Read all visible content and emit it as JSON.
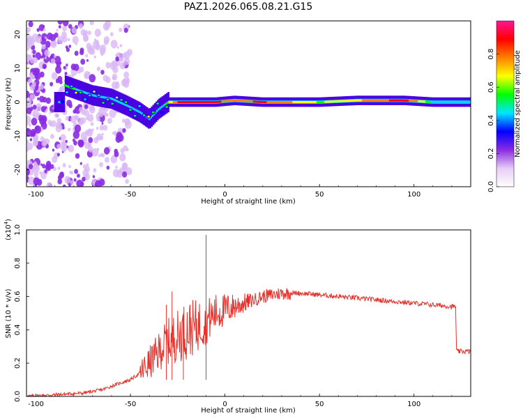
{
  "title": "PAZ1.2026.065.08.21.G15",
  "chart_data": [
    {
      "type": "heatmap",
      "xlabel": "Height of straight line (km)",
      "ylabel": "Frequency (Hz)",
      "xlim": [
        -105,
        130
      ],
      "ylim": [
        -25,
        24
      ],
      "xticks": [
        -100,
        -50,
        0,
        50,
        100
      ],
      "yticks": [
        -20,
        -10,
        0,
        10,
        20
      ],
      "colorbar": {
        "label": "Normalized spectral amplitude",
        "range": [
          0.0,
          1.0
        ],
        "ticks": [
          "0.0",
          "0.2",
          "0.4",
          "0.6",
          "0.8"
        ],
        "colors": [
          "#ffffff",
          "#e6ccf5",
          "#8a2be2",
          "#0000ff",
          "#00e5ff",
          "#00ff00",
          "#ffff00",
          "#ff8000",
          "#ff0000",
          "#ff1493"
        ]
      },
      "ridge": [
        {
          "x": -85,
          "y": 5,
          "amp": 0.6
        },
        {
          "x": -70,
          "y": 2,
          "amp": 0.45
        },
        {
          "x": -60,
          "y": 1,
          "amp": 0.5
        },
        {
          "x": -52,
          "y": -1,
          "amp": 0.45
        },
        {
          "x": -45,
          "y": -3,
          "amp": 0.45
        },
        {
          "x": -40,
          "y": -5,
          "amp": 0.5
        },
        {
          "x": -35,
          "y": -2,
          "amp": 0.5
        },
        {
          "x": -30,
          "y": 0,
          "amp": 0.6
        },
        {
          "x": -25,
          "y": 0,
          "amp": 0.85
        },
        {
          "x": -15,
          "y": 0,
          "amp": 0.85
        },
        {
          "x": -5,
          "y": 0,
          "amp": 0.85
        },
        {
          "x": 5,
          "y": 0.5,
          "amp": 0.8
        },
        {
          "x": 20,
          "y": 0,
          "amp": 0.85
        },
        {
          "x": 50,
          "y": 0,
          "amp": 0.6
        },
        {
          "x": 70,
          "y": 0.5,
          "amp": 0.7
        },
        {
          "x": 95,
          "y": 0.5,
          "amp": 0.9
        },
        {
          "x": 110,
          "y": 0,
          "amp": 0.5
        },
        {
          "x": 130,
          "y": 0,
          "amp": 0.5
        }
      ]
    },
    {
      "type": "line",
      "xlabel": "Height of straight line (km)",
      "ylabel": "SNR (10 * v/v)",
      "scale_note": "(x10",
      "scale_exp": "4",
      "scale_close": ")",
      "xlim": [
        -105,
        130
      ],
      "ylim": [
        0.0,
        1.0
      ],
      "xticks": [
        -100,
        -50,
        0,
        50,
        100
      ],
      "yticks": [
        "0.0",
        "0.2",
        "0.4",
        "0.6",
        "0.8",
        "1.0"
      ],
      "color": "#e8302a",
      "series": [
        {
          "x": [
            -105,
            -90,
            -75,
            -65,
            -58,
            -50,
            -45,
            -40,
            -36,
            -33,
            -30,
            -27,
            -24,
            -20,
            -15,
            -12,
            -10,
            -8,
            -5,
            0,
            5,
            10,
            15,
            20,
            25,
            30,
            35,
            40,
            50,
            60,
            70,
            80,
            90,
            100,
            110,
            120,
            122,
            122.5,
            130
          ],
          "y": [
            0.0,
            0.01,
            0.02,
            0.04,
            0.07,
            0.1,
            0.14,
            0.2,
            0.25,
            0.3,
            0.33,
            0.35,
            0.37,
            0.4,
            0.42,
            0.44,
            0.45,
            0.47,
            0.5,
            0.52,
            0.54,
            0.56,
            0.58,
            0.6,
            0.61,
            0.62,
            0.62,
            0.62,
            0.61,
            0.6,
            0.59,
            0.58,
            0.57,
            0.56,
            0.55,
            0.54,
            0.54,
            0.27,
            0.27
          ]
        }
      ],
      "spikes": [
        {
          "x": -28,
          "y": 0.63
        },
        {
          "x": -10,
          "y": 0.97
        },
        {
          "x": -31,
          "y": 0.55
        },
        {
          "x": -22,
          "y": 0.5
        }
      ]
    }
  ]
}
